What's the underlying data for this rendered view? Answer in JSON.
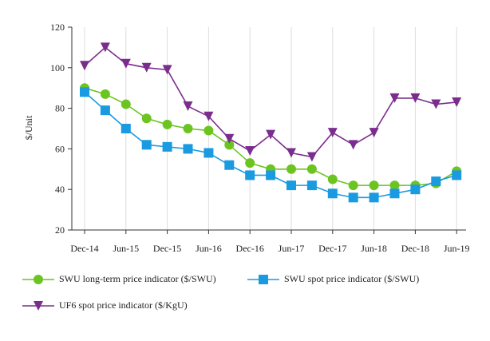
{
  "chart_data": {
    "type": "line",
    "ylabel": "$/Unit",
    "xlabel": "",
    "ylim": [
      20,
      120
    ],
    "yticks": [
      20,
      40,
      60,
      80,
      100,
      120
    ],
    "grid": "vertical",
    "legend_position": "bottom",
    "x_tick_labels": [
      "Dec-14",
      "Jun-15",
      "Dec-15",
      "Jun-16",
      "Dec-16",
      "Jun-17",
      "Dec-17",
      "Jun-18",
      "Dec-18",
      "Jun-19"
    ],
    "series": [
      {
        "name": "SWU long-term price indicator ($/SWU)",
        "color": "#6cc421",
        "marker": "circle",
        "values": [
          90,
          87,
          82,
          75,
          72,
          70,
          69,
          62,
          53,
          50,
          50,
          50,
          45,
          42,
          42,
          42,
          42,
          43,
          49
        ]
      },
      {
        "name": "SWU spot price indicator ($/SWU)",
        "color": "#1a9ae0",
        "marker": "square",
        "values": [
          88,
          79,
          70,
          62,
          61,
          60,
          58,
          52,
          47,
          47,
          42,
          42,
          38,
          36,
          36,
          38,
          40,
          44,
          47
        ]
      },
      {
        "name": "UF6 spot price indicator ($/KgU)",
        "color": "#7b2d8e",
        "marker": "triangle-down",
        "values": [
          101,
          110,
          102,
          100,
          99,
          81,
          76,
          65,
          59,
          67,
          58,
          56,
          68,
          62,
          68,
          85,
          85,
          82,
          83
        ]
      }
    ]
  }
}
